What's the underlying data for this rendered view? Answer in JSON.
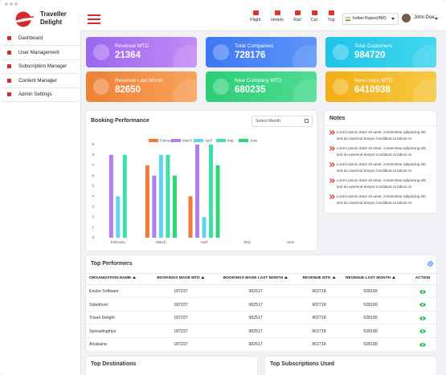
{
  "header": {
    "brand": {
      "line1": "Traveller",
      "line2": "Delight"
    },
    "nav": [
      "Flight",
      "Hotels",
      "Rail",
      "Car",
      "Trip"
    ],
    "currency": "Indian Rupee(INR)",
    "user": "John Doe"
  },
  "sidebar": [
    "Dashboard",
    "User Management",
    "Subscription Manager",
    "Content Manager",
    "Admin Settings"
  ],
  "cards": [
    {
      "label": "Revenue MTD",
      "value": "21364"
    },
    {
      "label": "Total Companies",
      "value": "728176"
    },
    {
      "label": "Total Customers",
      "value": "984720"
    },
    {
      "label": "Revenue Last Month",
      "value": "82650"
    },
    {
      "label": "New Company MTD",
      "value": "680235"
    },
    {
      "label": "New Users MTD",
      "value": "6410938"
    }
  ],
  "chart_data": {
    "type": "bar",
    "title": "Booking Performance",
    "categories": [
      "February",
      "March",
      "April",
      "May",
      "June"
    ],
    "series": [
      {
        "name": "February",
        "color": "#f37a3a",
        "values": [
          0,
          7,
          4,
          0,
          0
        ]
      },
      {
        "name": "March",
        "color": "#b27df0",
        "values": [
          8,
          6,
          9,
          0,
          0
        ]
      },
      {
        "name": "April",
        "color": "#5fd4f2",
        "values": [
          4,
          8,
          2,
          0,
          0
        ]
      },
      {
        "name": "May",
        "color": "#3fdfa8",
        "values": [
          8,
          8,
          9,
          0,
          0
        ]
      },
      {
        "name": "June",
        "color": "#2fd479",
        "values": [
          0,
          6,
          7,
          0,
          0
        ]
      }
    ],
    "ylim": [
      0,
      9
    ],
    "yticks": [
      0,
      1,
      2,
      3,
      4,
      5,
      6,
      7,
      8,
      9
    ],
    "grid": false,
    "legend": "top"
  },
  "month_select": "Select Month",
  "notes": {
    "title": "Notes",
    "items": [
      "Lorem ipsum dolor sit amet, consectetur adipiscing elit, sed do eiusmod tempor incididunt ut labore et",
      "Lorem ipsum dolor sit amet, consectetur adipiscing elit, sed do eiusmod tempor incididunt ut labore et",
      "Lorem ipsum dolor sit amet, consectetur adipiscing elit, sed do eiusmod tempor incididunt ut labore et",
      "Lorem ipsum dolor sit amet, consectetur adipiscing elit, sed do eiusmod tempor incididunt ut labore et",
      "Lorem ipsum dolor sit amet, consectetur adipiscing elit, sed do eiusmod tempor incididunt ut labore et"
    ]
  },
  "top_performers": {
    "title": "Top Performers",
    "columns": [
      "ORGANIZATION NAME",
      "BOOKINGS MADE MTD",
      "BOOKINGS MADE LAST MONTH",
      "REVENUE MTD",
      "REVENUE LAST MONTH",
      "ACTION"
    ],
    "rows": [
      [
        "Enuke Software",
        "187237",
        "982517",
        "902718",
        "528190"
      ],
      [
        "Sidedriver",
        "187237",
        "982517",
        "902718",
        "528190"
      ],
      [
        "Travel Delight",
        "187237",
        "982517",
        "902718",
        "528190"
      ],
      [
        "Spreadingtrips",
        "187237",
        "982517",
        "902718",
        "528190"
      ],
      [
        "Alcabana",
        "187237",
        "982517",
        "902718",
        "528190"
      ]
    ]
  },
  "bottom_panels": [
    "Top Destinations",
    "Top Subscriptions Used"
  ]
}
